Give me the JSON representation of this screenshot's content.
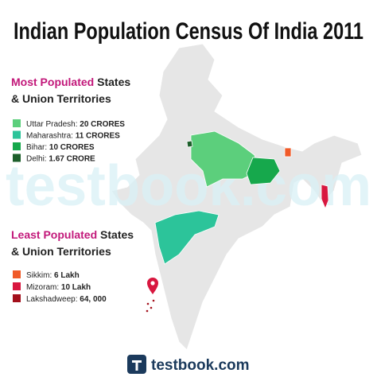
{
  "header": {
    "title": "Indian Population Census Of India 2011"
  },
  "watermark": "testbook.com",
  "most_populated": {
    "heading_highlight": "Most Populated",
    "heading_rest": "States",
    "heading_line2": "& Union Territories",
    "items": [
      {
        "label": "Uttar Pradesh:",
        "value": "20 CRORES",
        "color": "#5ccf7c"
      },
      {
        "label": "Maharashtra:",
        "value": "11 CRORES",
        "color": "#2cc49a"
      },
      {
        "label": "Bihar:",
        "value": "10 CRORES",
        "color": "#16a84c"
      },
      {
        "label": "Delhi:",
        "value": "1.67 CRORE",
        "color": "#1d5f2b"
      }
    ]
  },
  "least_populated": {
    "heading_highlight": "Least Populated",
    "heading_rest": "States",
    "heading_line2": "& Union Territories",
    "items": [
      {
        "label": "Sikkim:",
        "value": "6 Lakh",
        "color": "#f05a28"
      },
      {
        "label": "Mizoram:",
        "value": "10 Lakh",
        "color": "#d8173f"
      },
      {
        "label": "Lakshadweep:",
        "value": "64, 000",
        "color": "#a3101c"
      }
    ]
  },
  "footer": {
    "brand": "testbook.com"
  }
}
